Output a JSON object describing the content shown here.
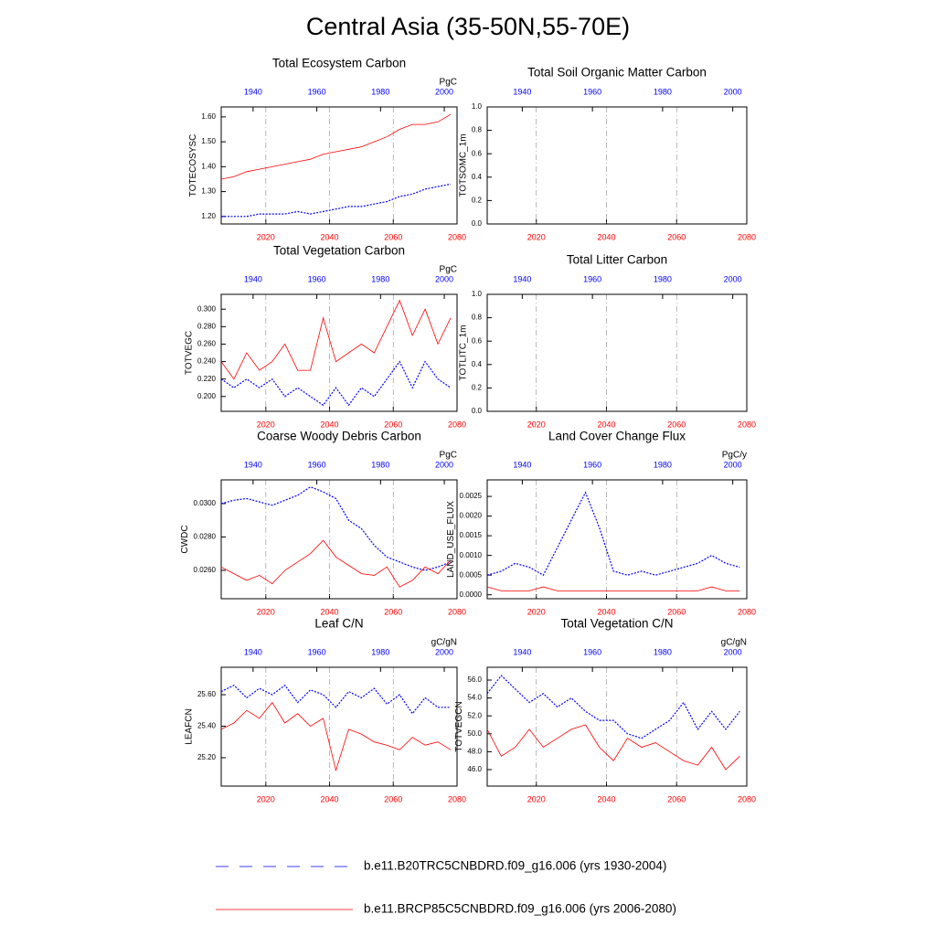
{
  "title": "Central Asia (35-50N,55-70E)",
  "chart_data": [
    {
      "type": "line",
      "title": "Total Ecosystem Carbon",
      "ylabel": "TOTECOSYSC",
      "units": "PgC",
      "xlim": [
        2006,
        2080
      ],
      "xticks": [
        2020,
        2040,
        2060,
        2080
      ],
      "x2lim": [
        1930,
        2004
      ],
      "x2ticks": [
        1940,
        1960,
        1980,
        2000
      ],
      "ylim": [
        1.17,
        1.64
      ],
      "yticks": [
        {
          "value": 1.2,
          "label": "1.20"
        },
        {
          "value": 1.3,
          "label": "1.30"
        },
        {
          "value": 1.4,
          "label": "1.40"
        },
        {
          "value": 1.5,
          "label": "1.50"
        },
        {
          "value": 1.6,
          "label": "1.60"
        }
      ],
      "grid": "x",
      "series": [
        {
          "name": "b.e11.B20TRC5CNBDRD.f09_g16.006 (yrs 1930-2004)",
          "color": "#0000ff",
          "dash": true,
          "axis": "x2",
          "x": [
            1930,
            1934,
            1938,
            1942,
            1946,
            1950,
            1954,
            1958,
            1962,
            1966,
            1970,
            1974,
            1978,
            1982,
            1986,
            1990,
            1994,
            1998,
            2002
          ],
          "values": [
            1.2,
            1.2,
            1.2,
            1.21,
            1.21,
            1.21,
            1.22,
            1.21,
            1.22,
            1.23,
            1.24,
            1.24,
            1.25,
            1.26,
            1.28,
            1.29,
            1.31,
            1.32,
            1.33
          ]
        },
        {
          "name": "b.e11.BRCP85C5CNBDRD.f09_g16.006 (yrs 2006-2080)",
          "color": "#ff0000",
          "dash": false,
          "axis": "x",
          "x": [
            2006,
            2010,
            2014,
            2018,
            2022,
            2026,
            2030,
            2034,
            2038,
            2042,
            2046,
            2050,
            2054,
            2058,
            2062,
            2066,
            2070,
            2074,
            2078
          ],
          "values": [
            1.35,
            1.36,
            1.38,
            1.39,
            1.4,
            1.41,
            1.42,
            1.43,
            1.45,
            1.46,
            1.47,
            1.48,
            1.5,
            1.52,
            1.55,
            1.57,
            1.57,
            1.58,
            1.61
          ]
        }
      ]
    },
    {
      "type": "line",
      "title": "Total Soil Organic Matter Carbon",
      "ylabel": "TOTSOMC_1m",
      "xlim": [
        2006,
        2080
      ],
      "xticks": [
        2020,
        2040,
        2060,
        2080
      ],
      "x2lim": [
        1930,
        2004
      ],
      "x2ticks": [
        1940,
        1960,
        1980,
        2000
      ],
      "ylim": [
        0,
        1
      ],
      "yticks": [
        {
          "value": 0,
          "label": "0.0"
        },
        0.2,
        0.4,
        0.6,
        0.8,
        {
          "value": 1,
          "label": "1.0"
        }
      ],
      "grid": "x",
      "series": []
    },
    {
      "type": "line",
      "title": "Total Vegetation Carbon",
      "ylabel": "TOTVEGC",
      "units": "PgC",
      "xlim": [
        2006,
        2080
      ],
      "xticks": [
        2020,
        2040,
        2060,
        2080
      ],
      "x2lim": [
        1930,
        2004
      ],
      "x2ticks": [
        1940,
        1960,
        1980,
        2000
      ],
      "ylim": [
        0.183,
        0.317
      ],
      "yticks": [
        {
          "value": 0.2,
          "label": "0.200"
        },
        {
          "value": 0.22,
          "label": "0.220"
        },
        {
          "value": 0.24,
          "label": "0.240"
        },
        {
          "value": 0.26,
          "label": "0.260"
        },
        {
          "value": 0.28,
          "label": "0.280"
        },
        {
          "value": 0.3,
          "label": "0.300"
        }
      ],
      "grid": "x",
      "series": [
        {
          "name": "b.e11.B20TRC5CNBDRD.f09_g16.006 (yrs 1930-2004)",
          "color": "#0000ff",
          "dash": true,
          "axis": "x2",
          "x": [
            1930,
            1934,
            1938,
            1942,
            1946,
            1950,
            1954,
            1958,
            1962,
            1966,
            1970,
            1974,
            1978,
            1982,
            1986,
            1990,
            1994,
            1998,
            2002
          ],
          "values": [
            0.22,
            0.21,
            0.22,
            0.21,
            0.22,
            0.2,
            0.21,
            0.2,
            0.19,
            0.21,
            0.19,
            0.21,
            0.2,
            0.22,
            0.24,
            0.21,
            0.24,
            0.22,
            0.21
          ]
        },
        {
          "name": "b.e11.BRCP85C5CNBDRD.f09_g16.006 (yrs 2006-2080)",
          "color": "#ff0000",
          "dash": false,
          "axis": "x",
          "x": [
            2006,
            2010,
            2014,
            2018,
            2022,
            2026,
            2030,
            2034,
            2038,
            2042,
            2046,
            2050,
            2054,
            2058,
            2062,
            2066,
            2070,
            2074,
            2078
          ],
          "values": [
            0.24,
            0.22,
            0.25,
            0.23,
            0.24,
            0.26,
            0.23,
            0.23,
            0.29,
            0.24,
            0.25,
            0.26,
            0.25,
            0.28,
            0.31,
            0.27,
            0.3,
            0.26,
            0.29
          ]
        }
      ]
    },
    {
      "type": "line",
      "title": "Total Litter Carbon",
      "ylabel": "TOTLITC_1m",
      "xlim": [
        2006,
        2080
      ],
      "xticks": [
        2020,
        2040,
        2060,
        2080
      ],
      "x2lim": [
        1930,
        2004
      ],
      "x2ticks": [
        1940,
        1960,
        1980,
        2000
      ],
      "ylim": [
        0,
        1
      ],
      "yticks": [
        {
          "value": 0,
          "label": "0.0"
        },
        0.2,
        0.4,
        0.6,
        0.8,
        {
          "value": 1,
          "label": "1.0"
        }
      ],
      "grid": "x",
      "series": []
    },
    {
      "type": "line",
      "title": "Coarse Woody Debris Carbon",
      "ylabel": "CWDC",
      "units": "PgC",
      "xlim": [
        2006,
        2080
      ],
      "xticks": [
        2020,
        2040,
        2060,
        2080
      ],
      "x2lim": [
        1930,
        2004
      ],
      "x2ticks": [
        1940,
        1960,
        1980,
        2000
      ],
      "ylim": [
        0.0243,
        0.03142
      ],
      "yticks": [
        {
          "value": 0.026,
          "label": "0.0260"
        },
        {
          "value": 0.028,
          "label": "0.0280"
        },
        {
          "value": 0.03,
          "label": "0.0300"
        }
      ],
      "grid": "x",
      "series": [
        {
          "name": "b.e11.B20TRC5CNBDRD.f09_g16.006 (yrs 1930-2004)",
          "color": "#0000ff",
          "dash": true,
          "axis": "x2",
          "x": [
            1930,
            1934,
            1938,
            1942,
            1946,
            1950,
            1954,
            1958,
            1962,
            1966,
            1970,
            1974,
            1978,
            1982,
            1986,
            1990,
            1994,
            1998,
            2002
          ],
          "values": [
            0.03,
            0.0302,
            0.0303,
            0.0301,
            0.0299,
            0.0302,
            0.0305,
            0.031,
            0.0307,
            0.0303,
            0.029,
            0.0285,
            0.0275,
            0.0268,
            0.0265,
            0.0262,
            0.026,
            0.0262,
            0.0265
          ]
        },
        {
          "name": "b.e11.BRCP85C5CNBDRD.f09_g16.006 (yrs 2006-2080)",
          "color": "#ff0000",
          "dash": false,
          "axis": "x",
          "x": [
            2006,
            2010,
            2014,
            2018,
            2022,
            2026,
            2030,
            2034,
            2038,
            2042,
            2046,
            2050,
            2054,
            2058,
            2062,
            2066,
            2070,
            2074,
            2078
          ],
          "values": [
            0.0262,
            0.0258,
            0.0254,
            0.0257,
            0.0252,
            0.026,
            0.0265,
            0.027,
            0.0278,
            0.0268,
            0.0263,
            0.0258,
            0.0257,
            0.0262,
            0.025,
            0.0254,
            0.0262,
            0.0258,
            0.0266
          ]
        }
      ]
    },
    {
      "type": "line",
      "title": "Land Cover Change Flux",
      "ylabel": "LAND_USE_FLUX",
      "units": "PgC/y",
      "xlim": [
        2006,
        2080
      ],
      "xticks": [
        2020,
        2040,
        2060,
        2080
      ],
      "x2lim": [
        1930,
        2004
      ],
      "x2ticks": [
        1940,
        1960,
        1980,
        2000
      ],
      "ylim": [
        -0.0001,
        0.00292
      ],
      "yticks": [
        {
          "value": 0,
          "label": "0.0000"
        },
        {
          "value": 0.0005,
          "label": "0.0005"
        },
        {
          "value": 0.001,
          "label": "0.0010"
        },
        {
          "value": 0.0015,
          "label": "0.0015"
        },
        {
          "value": 0.002,
          "label": "0.0020"
        },
        {
          "value": 0.0025,
          "label": "0.0025"
        }
      ],
      "grid": "x",
      "series": [
        {
          "name": "b.e11.B20TRC5CNBDRD.f09_g16.006 (yrs 1930-2004)",
          "color": "#0000ff",
          "dash": true,
          "axis": "x2",
          "x": [
            1930,
            1934,
            1938,
            1942,
            1946,
            1950,
            1954,
            1958,
            1962,
            1966,
            1970,
            1974,
            1978,
            1982,
            1986,
            1990,
            1994,
            1998,
            2002
          ],
          "values": [
            0.0005,
            0.0006,
            0.0008,
            0.0007,
            0.0005,
            0.0012,
            0.0019,
            0.0026,
            0.0017,
            0.0006,
            0.0005,
            0.0006,
            0.0005,
            0.0006,
            0.0007,
            0.0008,
            0.001,
            0.0008,
            0.0007
          ]
        },
        {
          "name": "b.e11.BRCP85C5CNBDRD.f09_g16.006 (yrs 2006-2080)",
          "color": "#ff0000",
          "dash": false,
          "axis": "x",
          "x": [
            2006,
            2010,
            2014,
            2018,
            2022,
            2026,
            2030,
            2034,
            2038,
            2042,
            2046,
            2050,
            2054,
            2058,
            2062,
            2066,
            2070,
            2074,
            2078
          ],
          "values": [
            0.0002,
            0.0001,
            0.0001,
            0.0001,
            0.0002,
            0.0001,
            0.0001,
            0.0001,
            0.0001,
            0.0001,
            0.0001,
            0.0001,
            0.0001,
            0.0001,
            0.0001,
            0.0001,
            0.0002,
            0.0001,
            0.0001
          ]
        }
      ]
    },
    {
      "type": "line",
      "title": "Leaf C/N",
      "ylabel": "LEAFCN",
      "units": "gC/gN",
      "xlim": [
        2006,
        2080
      ],
      "xticks": [
        2020,
        2040,
        2060,
        2080
      ],
      "x2lim": [
        1930,
        2004
      ],
      "x2ticks": [
        1940,
        1960,
        1980,
        2000
      ],
      "ylim": [
        25.02,
        25.774
      ],
      "yticks": [
        {
          "value": 25.2,
          "label": "25.20"
        },
        {
          "value": 25.4,
          "label": "25.40"
        },
        {
          "value": 25.6,
          "label": "25.60"
        }
      ],
      "grid": "x",
      "series": [
        {
          "name": "b.e11.B20TRC5CNBDRD.f09_g16.006 (yrs 1930-2004)",
          "color": "#0000ff",
          "dash": true,
          "axis": "x2",
          "x": [
            1930,
            1934,
            1938,
            1942,
            1946,
            1950,
            1954,
            1958,
            1962,
            1966,
            1970,
            1974,
            1978,
            1982,
            1986,
            1990,
            1994,
            1998,
            2002
          ],
          "values": [
            25.62,
            25.66,
            25.58,
            25.64,
            25.6,
            25.66,
            25.55,
            25.63,
            25.6,
            25.52,
            25.62,
            25.58,
            25.64,
            25.54,
            25.6,
            25.48,
            25.58,
            25.52,
            25.52
          ]
        },
        {
          "name": "b.e11.BRCP85C5CNBDRD.f09_g16.006 (yrs 2006-2080)",
          "color": "#ff0000",
          "dash": false,
          "axis": "x",
          "x": [
            2006,
            2010,
            2014,
            2018,
            2022,
            2026,
            2030,
            2034,
            2038,
            2042,
            2046,
            2050,
            2054,
            2058,
            2062,
            2066,
            2070,
            2074,
            2078
          ],
          "values": [
            25.38,
            25.42,
            25.5,
            25.45,
            25.55,
            25.42,
            25.48,
            25.4,
            25.45,
            25.12,
            25.38,
            25.35,
            25.3,
            25.28,
            25.25,
            25.33,
            25.28,
            25.3,
            25.25
          ]
        }
      ]
    },
    {
      "type": "line",
      "title": "Total Vegetation C/N",
      "ylabel": "TOTVEGCN",
      "units": "gC/gN",
      "xlim": [
        2006,
        2080
      ],
      "xticks": [
        2020,
        2040,
        2060,
        2080
      ],
      "x2lim": [
        1930,
        2004
      ],
      "x2ticks": [
        1940,
        1960,
        1980,
        2000
      ],
      "ylim": [
        44.16,
        57.43
      ],
      "yticks": [
        {
          "value": 46,
          "label": "46.0"
        },
        {
          "value": 48,
          "label": "48.0"
        },
        {
          "value": 50,
          "label": "50.0"
        },
        {
          "value": 52,
          "label": "52.0"
        },
        {
          "value": 54,
          "label": "54.0"
        },
        {
          "value": 56,
          "label": "56.0"
        }
      ],
      "grid": "x",
      "series": [
        {
          "name": "b.e11.B20TRC5CNBDRD.f09_g16.006 (yrs 1930-2004)",
          "color": "#0000ff",
          "dash": true,
          "axis": "x2",
          "x": [
            1930,
            1934,
            1938,
            1942,
            1946,
            1950,
            1954,
            1958,
            1962,
            1966,
            1970,
            1974,
            1978,
            1982,
            1986,
            1990,
            1994,
            1998,
            2002
          ],
          "values": [
            54.5,
            56.5,
            55.0,
            53.5,
            54.5,
            53.0,
            54.0,
            52.5,
            51.5,
            51.5,
            50.0,
            49.5,
            50.5,
            51.5,
            53.5,
            50.5,
            52.5,
            50.5,
            52.5
          ]
        },
        {
          "name": "b.e11.BRCP85C5CNBDRD.f09_g16.006 (yrs 2006-2080)",
          "color": "#ff0000",
          "dash": false,
          "axis": "x",
          "x": [
            2006,
            2010,
            2014,
            2018,
            2022,
            2026,
            2030,
            2034,
            2038,
            2042,
            2046,
            2050,
            2054,
            2058,
            2062,
            2066,
            2070,
            2074,
            2078
          ],
          "values": [
            50.5,
            47.5,
            48.5,
            50.5,
            48.5,
            49.5,
            50.5,
            51.0,
            48.5,
            47.0,
            49.5,
            48.5,
            49.0,
            48.0,
            47.0,
            46.5,
            48.5,
            46.0,
            47.5
          ]
        }
      ]
    }
  ]
}
